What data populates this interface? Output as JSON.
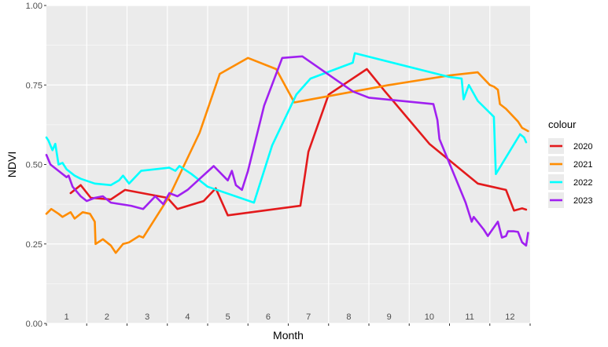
{
  "chart_data": {
    "type": "line",
    "xlabel": "Month",
    "ylabel": "NDVI",
    "ylim": [
      0,
      1
    ],
    "xlim": [
      0.5,
      12.5
    ],
    "y_ticks": [
      "0.00",
      "0.25",
      "0.50",
      "0.75",
      "1.00"
    ],
    "x_ticks": [
      "1",
      "2",
      "3",
      "4",
      "5",
      "6",
      "7",
      "8",
      "9",
      "10",
      "11",
      "12"
    ],
    "grid": true,
    "legend": {
      "title": "colour",
      "position": "right"
    },
    "series": [
      {
        "name": "2020",
        "color": "#e31a1c",
        "points": [
          [
            1.1,
            0.41
          ],
          [
            1.35,
            0.435
          ],
          [
            1.6,
            0.395
          ],
          [
            2.1,
            0.39
          ],
          [
            2.45,
            0.42
          ],
          [
            3.5,
            0.395
          ],
          [
            3.75,
            0.36
          ],
          [
            4.4,
            0.385
          ],
          [
            4.7,
            0.425
          ],
          [
            5.0,
            0.34
          ],
          [
            6.8,
            0.37
          ],
          [
            7.0,
            0.54
          ],
          [
            7.5,
            0.72
          ],
          [
            8.45,
            0.8
          ],
          [
            8.9,
            0.73
          ],
          [
            10.0,
            0.565
          ],
          [
            11.2,
            0.44
          ],
          [
            11.9,
            0.42
          ],
          [
            12.1,
            0.355
          ],
          [
            12.3,
            0.362
          ],
          [
            12.4,
            0.358
          ]
        ]
      },
      {
        "name": "2021",
        "color": "#ff8c00",
        "points": [
          [
            0.5,
            0.345
          ],
          [
            0.62,
            0.36
          ],
          [
            0.8,
            0.345
          ],
          [
            0.9,
            0.335
          ],
          [
            1.1,
            0.35
          ],
          [
            1.2,
            0.33
          ],
          [
            1.4,
            0.35
          ],
          [
            1.58,
            0.345
          ],
          [
            1.7,
            0.32
          ],
          [
            1.72,
            0.25
          ],
          [
            1.9,
            0.265
          ],
          [
            2.1,
            0.245
          ],
          [
            2.22,
            0.222
          ],
          [
            2.4,
            0.25
          ],
          [
            2.55,
            0.255
          ],
          [
            2.8,
            0.275
          ],
          [
            2.9,
            0.27
          ],
          [
            3.0,
            0.29
          ],
          [
            3.55,
            0.4
          ],
          [
            4.3,
            0.6
          ],
          [
            4.8,
            0.785
          ],
          [
            5.5,
            0.835
          ],
          [
            6.2,
            0.8
          ],
          [
            6.65,
            0.695
          ],
          [
            9.0,
            0.75
          ],
          [
            10.5,
            0.78
          ],
          [
            11.2,
            0.79
          ],
          [
            11.5,
            0.75
          ],
          [
            11.6,
            0.745
          ],
          [
            11.7,
            0.735
          ],
          [
            11.75,
            0.69
          ],
          [
            11.9,
            0.675
          ],
          [
            12.2,
            0.635
          ],
          [
            12.3,
            0.615
          ],
          [
            12.45,
            0.605
          ]
        ]
      },
      {
        "name": "2022",
        "color": "#00ffff",
        "points": [
          [
            0.5,
            0.585
          ],
          [
            0.55,
            0.575
          ],
          [
            0.65,
            0.545
          ],
          [
            0.72,
            0.565
          ],
          [
            0.8,
            0.5
          ],
          [
            0.9,
            0.505
          ],
          [
            1.0,
            0.485
          ],
          [
            1.2,
            0.465
          ],
          [
            1.35,
            0.455
          ],
          [
            1.7,
            0.44
          ],
          [
            2.1,
            0.435
          ],
          [
            2.3,
            0.45
          ],
          [
            2.4,
            0.465
          ],
          [
            2.55,
            0.44
          ],
          [
            2.85,
            0.48
          ],
          [
            3.2,
            0.485
          ],
          [
            3.55,
            0.49
          ],
          [
            3.7,
            0.48
          ],
          [
            3.8,
            0.495
          ],
          [
            4.1,
            0.47
          ],
          [
            4.5,
            0.43
          ],
          [
            5.65,
            0.38
          ],
          [
            6.1,
            0.56
          ],
          [
            6.7,
            0.72
          ],
          [
            7.05,
            0.77
          ],
          [
            8.1,
            0.82
          ],
          [
            8.15,
            0.85
          ],
          [
            10.5,
            0.775
          ],
          [
            10.8,
            0.77
          ],
          [
            10.85,
            0.705
          ],
          [
            10.98,
            0.75
          ],
          [
            11.2,
            0.7
          ],
          [
            11.6,
            0.65
          ],
          [
            11.65,
            0.47
          ],
          [
            12.25,
            0.595
          ],
          [
            12.35,
            0.585
          ],
          [
            12.4,
            0.57
          ]
        ]
      },
      {
        "name": "2023",
        "color": "#a020f0",
        "points": [
          [
            0.5,
            0.53
          ],
          [
            0.6,
            0.5
          ],
          [
            0.8,
            0.48
          ],
          [
            1.0,
            0.46
          ],
          [
            1.05,
            0.465
          ],
          [
            1.15,
            0.43
          ],
          [
            1.35,
            0.4
          ],
          [
            1.5,
            0.385
          ],
          [
            1.7,
            0.395
          ],
          [
            1.9,
            0.4
          ],
          [
            2.1,
            0.38
          ],
          [
            2.6,
            0.37
          ],
          [
            2.9,
            0.36
          ],
          [
            3.2,
            0.4
          ],
          [
            3.4,
            0.375
          ],
          [
            3.55,
            0.41
          ],
          [
            3.75,
            0.4
          ],
          [
            4.0,
            0.42
          ],
          [
            4.65,
            0.495
          ],
          [
            5.0,
            0.45
          ],
          [
            5.1,
            0.48
          ],
          [
            5.2,
            0.435
          ],
          [
            5.35,
            0.42
          ],
          [
            5.5,
            0.48
          ],
          [
            5.9,
            0.685
          ],
          [
            6.35,
            0.835
          ],
          [
            6.85,
            0.84
          ],
          [
            8.1,
            0.73
          ],
          [
            8.5,
            0.71
          ],
          [
            10.1,
            0.69
          ],
          [
            10.2,
            0.64
          ],
          [
            10.25,
            0.58
          ],
          [
            10.9,
            0.38
          ],
          [
            11.05,
            0.32
          ],
          [
            11.1,
            0.335
          ],
          [
            11.35,
            0.295
          ],
          [
            11.45,
            0.275
          ],
          [
            11.7,
            0.32
          ],
          [
            11.8,
            0.27
          ],
          [
            11.9,
            0.275
          ],
          [
            11.95,
            0.29
          ],
          [
            12.1,
            0.29
          ],
          [
            12.2,
            0.288
          ],
          [
            12.3,
            0.255
          ],
          [
            12.4,
            0.245
          ],
          [
            12.45,
            0.285
          ]
        ]
      }
    ]
  }
}
